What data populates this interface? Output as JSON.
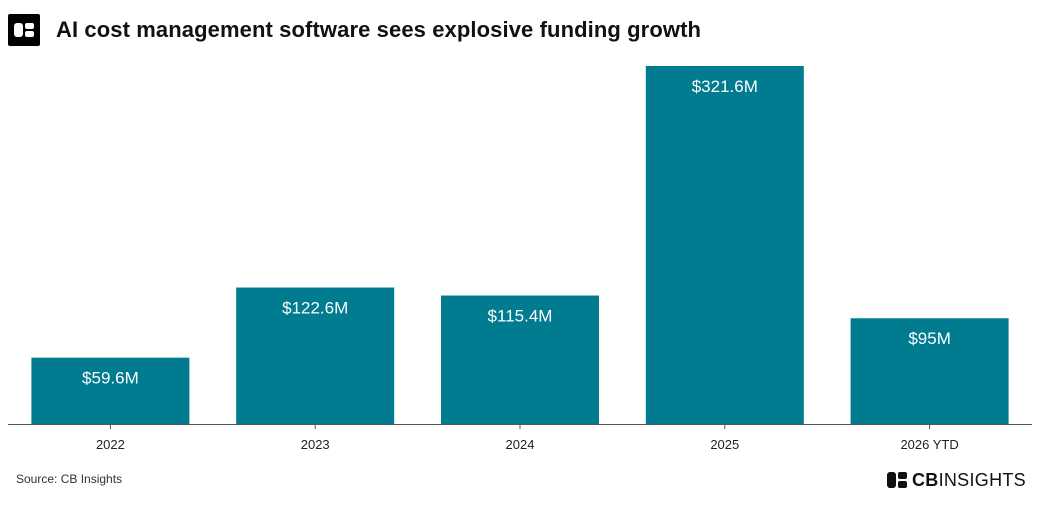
{
  "header": {
    "logo_icon": "cb-insights-logo-icon",
    "title": "AI cost management software sees explosive funding growth"
  },
  "chart_data": {
    "type": "bar",
    "title": "AI cost management software sees explosive funding growth",
    "categories": [
      "2022",
      "2023",
      "2024",
      "2025",
      "2026 YTD"
    ],
    "values": [
      59.6,
      122.6,
      115.4,
      321.6,
      95
    ],
    "data_labels": [
      "$59.6M",
      "$122.6M",
      "$115.4M",
      "$321.6M",
      "$95M"
    ],
    "unit": "$M",
    "xlabel": "",
    "ylabel": "",
    "ylim": [
      0,
      321.6
    ],
    "grid": false,
    "bar_color": "#007b8f"
  },
  "footer": {
    "source": "Source: CB Insights",
    "brand_bold": "CB",
    "brand_rest": "INSIGHTS",
    "brand_icon": "cb-insights-logo-icon"
  }
}
